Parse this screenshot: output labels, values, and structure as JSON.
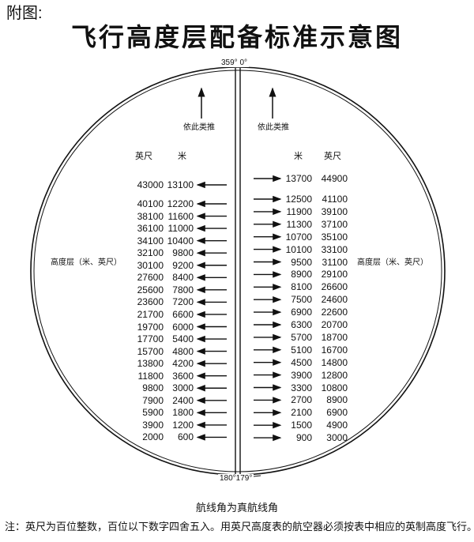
{
  "prefix": "附图:",
  "title": "飞行高度层配备标准示意图",
  "top_label": "359° 0°",
  "bottom_label": "180°179°",
  "extrapolate_label": "依此类推",
  "side_label": "高度层（米、英尺）",
  "left": {
    "headers": [
      "英尺",
      "米"
    ],
    "rows": [
      [
        "43000",
        "13100"
      ],
      [
        "40100",
        "12200"
      ],
      [
        "38100",
        "11600"
      ],
      [
        "36100",
        "11000"
      ],
      [
        "34100",
        "10400"
      ],
      [
        "32100",
        "9800"
      ],
      [
        "30100",
        "9200"
      ],
      [
        "27600",
        "8400"
      ],
      [
        "25600",
        "7800"
      ],
      [
        "23600",
        "7200"
      ],
      [
        "21700",
        "6600"
      ],
      [
        "19700",
        "6000"
      ],
      [
        "17700",
        "5400"
      ],
      [
        "15700",
        "4800"
      ],
      [
        "13800",
        "4200"
      ],
      [
        "11800",
        "3600"
      ],
      [
        "9800",
        "3000"
      ],
      [
        "7900",
        "2400"
      ],
      [
        "5900",
        "1800"
      ],
      [
        "3900",
        "1200"
      ],
      [
        "2000",
        "600"
      ]
    ]
  },
  "right": {
    "headers": [
      "米",
      "英尺"
    ],
    "rows": [
      [
        "13700",
        "44900"
      ],
      [
        "12500",
        "41100"
      ],
      [
        "11900",
        "39100"
      ],
      [
        "11300",
        "37100"
      ],
      [
        "10700",
        "35100"
      ],
      [
        "10100",
        "33100"
      ],
      [
        "9500",
        "31100"
      ],
      [
        "8900",
        "29100"
      ],
      [
        "8100",
        "26600"
      ],
      [
        "7500",
        "24600"
      ],
      [
        "6900",
        "22600"
      ],
      [
        "6300",
        "20700"
      ],
      [
        "5700",
        "18700"
      ],
      [
        "5100",
        "16700"
      ],
      [
        "4500",
        "14800"
      ],
      [
        "3900",
        "12800"
      ],
      [
        "3300",
        "10800"
      ],
      [
        "2700",
        "8900"
      ],
      [
        "2100",
        "6900"
      ],
      [
        "1500",
        "4900"
      ],
      [
        "900",
        "3000"
      ]
    ]
  },
  "caption": "航线角为真航线角",
  "note": "注：英尺为百位整数，百位以下数字四舍五入。用英尺高度表的航空器必须按表中相应的英制高度飞行。"
}
